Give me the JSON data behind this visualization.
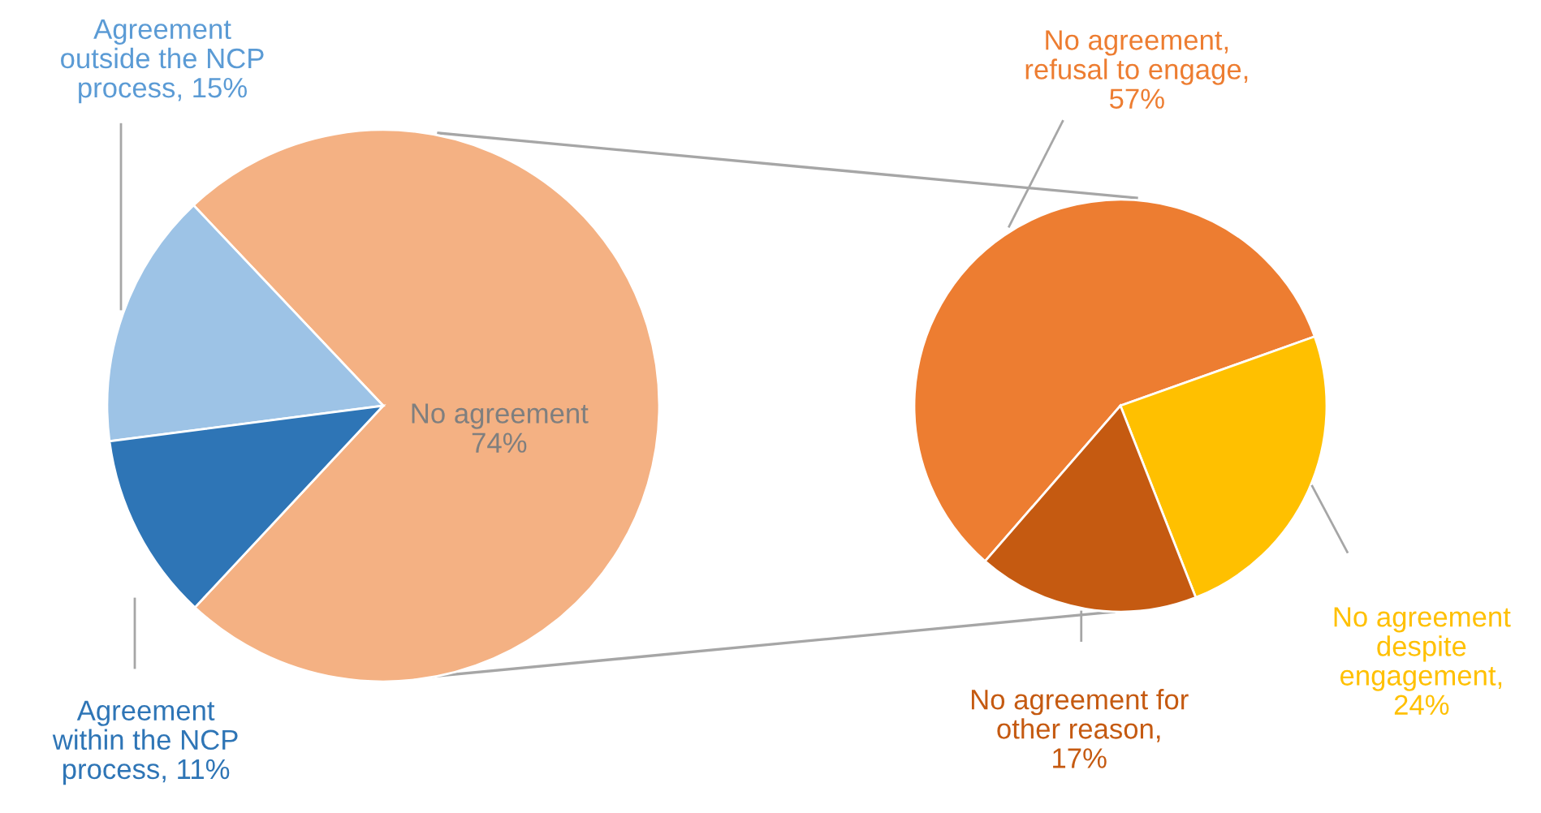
{
  "chart_data": [
    {
      "type": "pie",
      "categories": [
        "No agreement\n74%",
        "Agreement\noutside the NCP\nprocess, 15%",
        "Agreement\nwithin the NCP\nprocess, 11%"
      ],
      "values": [
        74,
        15,
        11
      ],
      "colors": [
        "#f4b183",
        "#9dc3e6",
        "#2e75b6"
      ]
    },
    {
      "type": "pie",
      "categories": [
        "No agreement,\nrefusal to engage,\n57%",
        "No agreement\ndespite\nengagement,\n24%",
        "No agreement for\nother reason,\n17%"
      ],
      "values": [
        57,
        24,
        17
      ],
      "colors": [
        "#ed7d31",
        "#ffc000",
        "#c55a11"
      ]
    }
  ]
}
